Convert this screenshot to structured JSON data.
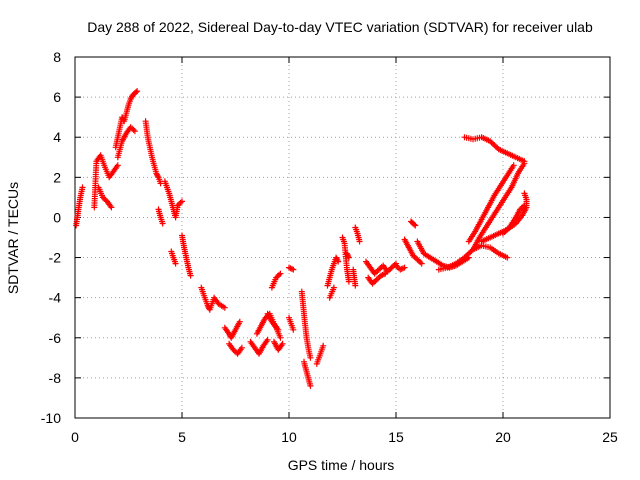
{
  "chart_data": {
    "type": "scatter",
    "title": "Day 288 of 2022, Sidereal Day-to-day VTEC variation (SDTVAR) for receiver ulab",
    "xlabel": "GPS time / hours",
    "ylabel": "SDTVAR / TECUs",
    "xlim": [
      0,
      25
    ],
    "ylim": [
      -10,
      8
    ],
    "xticks": [
      "0",
      "5",
      "10",
      "15",
      "20",
      "25"
    ],
    "yticks": [
      "-10",
      "-8",
      "-6",
      "-4",
      "-2",
      "0",
      "2",
      "4",
      "6",
      "8"
    ],
    "grid": true,
    "marker": "+",
    "color": "#ff0000",
    "segments": [
      {
        "x": [
          0.05,
          0.15,
          0.25,
          0.35
        ],
        "y": [
          -0.4,
          0.3,
          1.0,
          1.5
        ]
      },
      {
        "x": [
          0.9,
          1.0,
          1.2,
          1.4,
          1.6,
          1.8,
          2.0
        ],
        "y": [
          0.5,
          2.8,
          3.1,
          2.5,
          2.0,
          2.3,
          2.6
        ]
      },
      {
        "x": [
          1.1,
          1.3,
          1.5,
          1.7
        ],
        "y": [
          1.5,
          1.0,
          0.8,
          0.5
        ]
      },
      {
        "x": [
          1.9,
          2.1,
          2.2,
          2.3,
          2.4,
          2.5,
          2.6,
          2.7,
          2.8,
          2.9
        ],
        "y": [
          3.5,
          4.5,
          5.0,
          4.8,
          5.2,
          5.6,
          5.9,
          6.1,
          6.2,
          6.3
        ]
      },
      {
        "x": [
          2.0,
          2.2,
          2.4,
          2.6,
          2.8
        ],
        "y": [
          3.0,
          3.8,
          4.2,
          4.5,
          4.3
        ]
      },
      {
        "x": [
          3.3,
          3.4,
          3.5,
          3.6,
          3.7,
          3.8,
          3.9,
          4.0
        ],
        "y": [
          4.8,
          4.0,
          3.5,
          3.0,
          2.6,
          2.2,
          2.0,
          1.7
        ]
      },
      {
        "x": [
          4.2,
          4.4,
          4.5,
          4.6,
          4.7,
          4.8,
          5.0
        ],
        "y": [
          1.8,
          1.2,
          0.8,
          0.4,
          0.0,
          0.6,
          0.8
        ]
      },
      {
        "x": [
          3.9,
          4.0,
          4.1
        ],
        "y": [
          0.4,
          0.0,
          -0.3
        ]
      },
      {
        "x": [
          4.5,
          4.6,
          4.7
        ],
        "y": [
          -1.7,
          -2.0,
          -2.3
        ]
      },
      {
        "x": [
          5.0,
          5.1,
          5.2,
          5.3,
          5.4
        ],
        "y": [
          -0.9,
          -1.5,
          -2.0,
          -2.5,
          -2.9
        ]
      },
      {
        "x": [
          5.9,
          6.0,
          6.1,
          6.2,
          6.3,
          6.5,
          6.7,
          7.0
        ],
        "y": [
          -3.5,
          -3.8,
          -4.1,
          -4.4,
          -4.6,
          -4.0,
          -4.3,
          -4.5
        ]
      },
      {
        "x": [
          7.0,
          7.2,
          7.3,
          7.5,
          7.7
        ],
        "y": [
          -5.5,
          -5.8,
          -6.0,
          -5.6,
          -5.2
        ]
      },
      {
        "x": [
          7.2,
          7.4,
          7.6,
          7.8
        ],
        "y": [
          -6.3,
          -6.6,
          -6.8,
          -6.5
        ]
      },
      {
        "x": [
          8.2,
          8.4,
          8.6,
          8.8,
          9.0
        ],
        "y": [
          -6.2,
          -6.5,
          -6.8,
          -6.4,
          -6.1
        ]
      },
      {
        "x": [
          8.5,
          8.7,
          8.9,
          9.1,
          9.3,
          9.5
        ],
        "y": [
          -5.8,
          -5.4,
          -5.0,
          -4.8,
          -5.3,
          -5.6
        ]
      },
      {
        "x": [
          9.0,
          9.2,
          9.4,
          9.6
        ],
        "y": [
          -4.8,
          -5.2,
          -5.5,
          -6.0
        ]
      },
      {
        "x": [
          9.2,
          9.4,
          9.6
        ],
        "y": [
          -3.5,
          -3.0,
          -2.8
        ]
      },
      {
        "x": [
          9.3,
          9.5,
          9.7
        ],
        "y": [
          -6.2,
          -6.6,
          -6.3
        ]
      },
      {
        "x": [
          10.0,
          10.2
        ],
        "y": [
          -2.5,
          -2.6
        ]
      },
      {
        "x": [
          10.0,
          10.1,
          10.2
        ],
        "y": [
          -5.0,
          -5.3,
          -5.6
        ]
      },
      {
        "x": [
          10.6,
          10.7,
          10.8,
          10.9,
          11.0
        ],
        "y": [
          -3.7,
          -4.8,
          -5.8,
          -6.5,
          -7.0
        ]
      },
      {
        "x": [
          10.7,
          10.8,
          10.9,
          11.0
        ],
        "y": [
          -7.2,
          -7.6,
          -8.0,
          -8.4
        ]
      },
      {
        "x": [
          11.3,
          11.4,
          11.5,
          11.6
        ],
        "y": [
          -7.3,
          -7.0,
          -6.7,
          -6.4
        ]
      },
      {
        "x": [
          11.8,
          11.9,
          12.0,
          12.1,
          12.2,
          12.3
        ],
        "y": [
          -3.4,
          -3.0,
          -2.6,
          -2.3,
          -2.0,
          -2.2
        ]
      },
      {
        "x": [
          11.9,
          12.1
        ],
        "y": [
          -4.0,
          -3.5
        ]
      },
      {
        "x": [
          12.5,
          12.6,
          12.7,
          12.8
        ],
        "y": [
          -1.0,
          -1.3,
          -2.5,
          -3.2
        ]
      },
      {
        "x": [
          12.7,
          12.8
        ],
        "y": [
          -1.8,
          -2.0
        ]
      },
      {
        "x": [
          13.1,
          13.2,
          13.3
        ],
        "y": [
          -0.5,
          -0.8,
          -1.2
        ]
      },
      {
        "x": [
          13.0,
          13.1
        ],
        "y": [
          -2.6,
          -3.4
        ]
      },
      {
        "x": [
          13.6,
          13.8,
          14.0,
          14.2,
          14.4,
          14.6,
          14.8,
          15.0
        ],
        "y": [
          -2.2,
          -2.5,
          -2.8,
          -2.6,
          -2.4,
          -2.7,
          -2.5,
          -2.3
        ]
      },
      {
        "x": [
          13.7,
          13.9,
          14.1,
          14.3,
          14.5
        ],
        "y": [
          -3.0,
          -3.3,
          -3.1,
          -2.9,
          -2.8
        ]
      },
      {
        "x": [
          15.0,
          15.2,
          15.4
        ],
        "y": [
          -2.4,
          -2.6,
          -2.5
        ]
      },
      {
        "x": [
          15.4,
          15.6,
          15.8,
          16.0,
          16.2
        ],
        "y": [
          -1.1,
          -1.5,
          -1.9,
          -2.1,
          -2.3
        ]
      },
      {
        "x": [
          15.7,
          15.8,
          15.9
        ],
        "y": [
          -0.2,
          -0.3,
          -0.4
        ]
      },
      {
        "x": [
          16.0,
          16.3,
          16.6,
          16.9,
          17.2,
          17.5,
          17.8,
          18.1,
          18.4
        ],
        "y": [
          -1.2,
          -1.8,
          -2.0,
          -2.2,
          -2.4,
          -2.5,
          -2.4,
          -2.2,
          -2.0
        ]
      },
      {
        "x": [
          17.0,
          17.4,
          17.8,
          18.2,
          18.6,
          19.0,
          19.4,
          19.8,
          20.2
        ],
        "y": [
          -2.6,
          -2.5,
          -2.3,
          -2.0,
          -1.6,
          -1.4,
          -1.5,
          -1.8,
          -2.0
        ]
      },
      {
        "x": [
          18.4,
          18.7,
          19.0,
          19.3,
          19.6,
          19.9,
          20.2,
          20.5
        ],
        "y": [
          -1.2,
          -0.7,
          -0.1,
          0.5,
          1.1,
          1.6,
          2.1,
          2.6
        ]
      },
      {
        "x": [
          18.6,
          18.9,
          19.2,
          19.5,
          19.8,
          20.1,
          20.4,
          20.7,
          21.0
        ],
        "y": [
          -1.6,
          -1.0,
          -0.5,
          0.0,
          0.5,
          1.0,
          1.5,
          2.2,
          2.7
        ]
      },
      {
        "x": [
          19.0,
          19.4,
          19.8,
          20.2,
          20.6,
          20.9,
          21.1,
          21.1,
          21.0
        ],
        "y": [
          -1.2,
          -1.0,
          -0.8,
          -0.6,
          -0.3,
          0.1,
          0.5,
          0.9,
          1.2
        ]
      },
      {
        "x": [
          20.0,
          20.3,
          20.6,
          20.8,
          21.0
        ],
        "y": [
          -0.8,
          -0.5,
          0.0,
          0.4,
          0.6
        ]
      },
      {
        "x": [
          18.2,
          18.6,
          19.0,
          19.4,
          19.8,
          20.2,
          20.6,
          21.0
        ],
        "y": [
          4.0,
          3.9,
          4.0,
          3.8,
          3.4,
          3.2,
          3.0,
          2.8
        ]
      }
    ]
  }
}
